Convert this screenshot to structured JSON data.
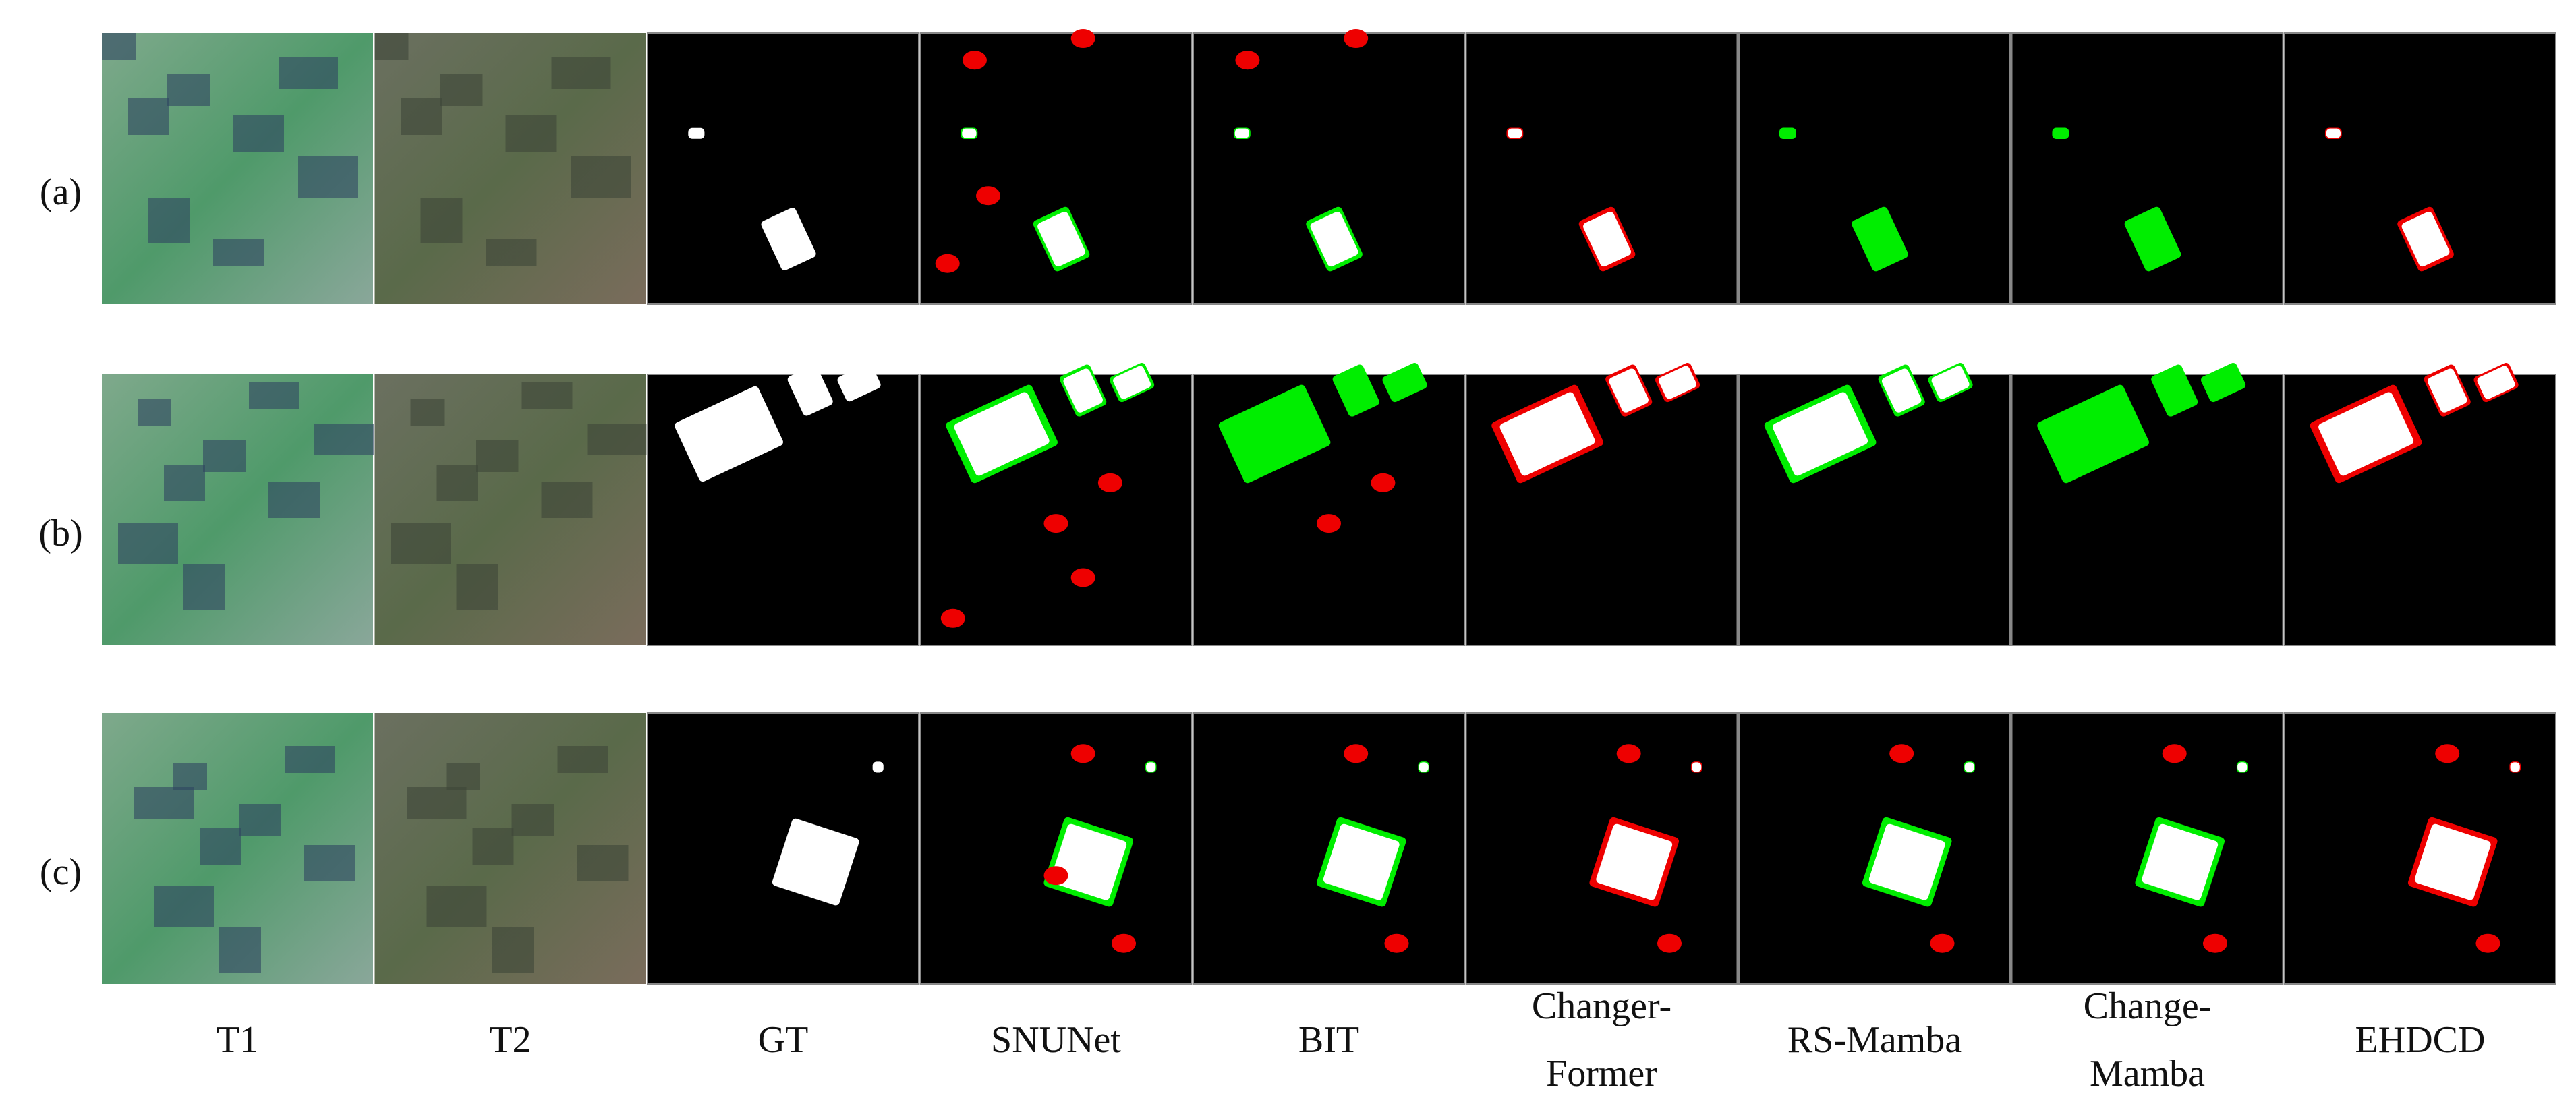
{
  "figure": {
    "row_labels": [
      "(a)",
      "(b)",
      "(c)"
    ],
    "column_labels": [
      [
        "T1"
      ],
      [
        "T2"
      ],
      [
        "GT"
      ],
      [
        "SNUNet"
      ],
      [
        "BIT"
      ],
      [
        "Changer-",
        "Former"
      ],
      [
        "RS-Mamba"
      ],
      [
        "Change-",
        "Mamba"
      ],
      [
        "EHDCD"
      ]
    ]
  }
}
